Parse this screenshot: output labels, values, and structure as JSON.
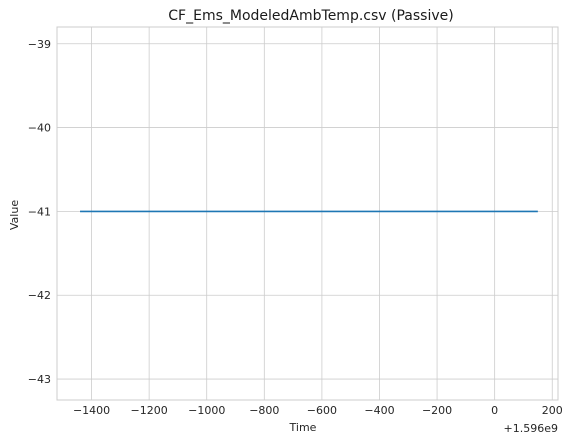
{
  "chart_data": {
    "type": "line",
    "title": "CF_Ems_ModeledAmbTemp.csv (Passive)",
    "xlabel": "Time",
    "ylabel": "Value",
    "x_offset_label": "+1.596e9",
    "xlim": [
      -1520,
      220
    ],
    "ylim": [
      -43.25,
      -38.8
    ],
    "xticks": [
      -1400,
      -1200,
      -1000,
      -800,
      -600,
      -400,
      -200,
      0,
      200
    ],
    "xtick_labels": [
      "−1400",
      "−1200",
      "−1000",
      "−800",
      "−600",
      "−400",
      "−200",
      "0",
      "200"
    ],
    "yticks": [
      -43,
      -42,
      -41,
      -40,
      -39
    ],
    "ytick_labels": [
      "−43",
      "−42",
      "−41",
      "−40",
      "−39"
    ],
    "grid": true,
    "series": [
      {
        "color": "#1f77b4",
        "x": [
          -1440,
          150
        ],
        "y": [
          -41,
          -41
        ]
      }
    ]
  }
}
